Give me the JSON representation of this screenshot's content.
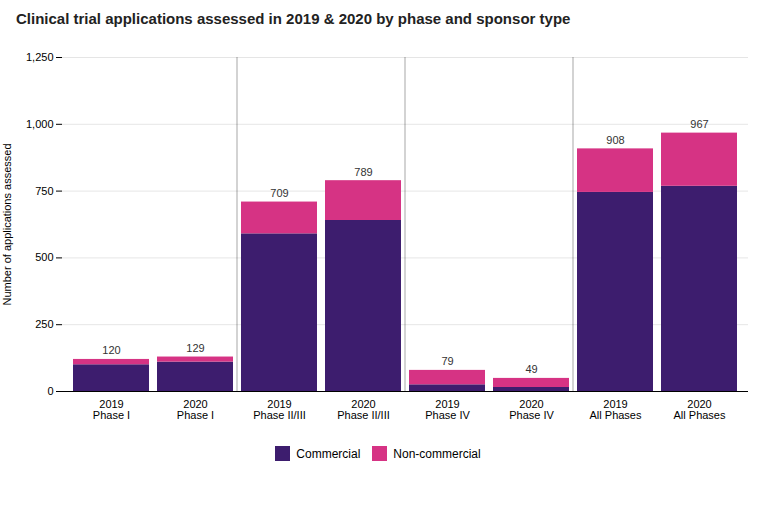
{
  "chart_data": {
    "type": "bar",
    "title": "Clinical trial applications assessed in 2019 & 2020 by phase and sponsor type",
    "ylabel": "Number of applications assessed",
    "categories": [
      "2019 Phase I",
      "2020 Phase I",
      "2019 Phase II/III",
      "2020 Phase II/III",
      "2019 Phase IV",
      "2020 Phase IV",
      "2019 All Phases",
      "2020 All Phases"
    ],
    "series": [
      {
        "name": "Commercial",
        "color": "#3d1d6e",
        "values": [
          100,
          110,
          590,
          640,
          25,
          15,
          745,
          768
        ]
      },
      {
        "name": "Non-commercial",
        "color": "#d63384",
        "values": [
          20,
          19,
          119,
          149,
          54,
          34,
          163,
          199
        ]
      }
    ],
    "totals": [
      120,
      129,
      709,
      789,
      79,
      49,
      908,
      967
    ],
    "stacked": true,
    "ylim": [
      0,
      1250
    ],
    "yticks": [
      0,
      250,
      500,
      750,
      1000,
      1250
    ],
    "grid": true,
    "legend": "bottom"
  }
}
